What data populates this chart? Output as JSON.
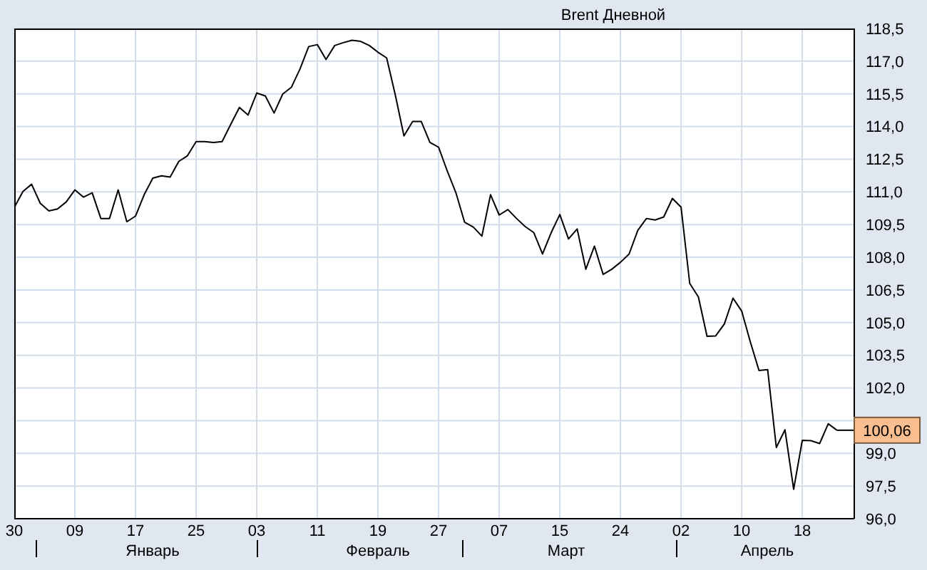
{
  "chart_data": {
    "type": "line",
    "title": "Brent Дневной",
    "annotations": [
      "Январь",
      "Февраль",
      "Март",
      "Апрель"
    ],
    "categories": [
      "30",
      null,
      null,
      null,
      null,
      null,
      null,
      "09",
      null,
      null,
      null,
      null,
      null,
      null,
      "17",
      null,
      null,
      null,
      null,
      null,
      null,
      "25",
      null,
      null,
      null,
      null,
      null,
      null,
      "03",
      null,
      null,
      null,
      null,
      null,
      null,
      "11",
      null,
      null,
      null,
      null,
      null,
      null,
      "19",
      null,
      null,
      null,
      null,
      null,
      null,
      "27",
      null,
      null,
      null,
      null,
      null,
      null,
      "07",
      null,
      null,
      null,
      null,
      null,
      null,
      "15",
      null,
      null,
      null,
      null,
      null,
      null,
      "24",
      null,
      null,
      null,
      null,
      null,
      null,
      "02",
      null,
      null,
      null,
      null,
      null,
      null,
      "10",
      null,
      null,
      null,
      null,
      null,
      null,
      "18",
      null,
      null,
      null,
      null,
      null,
      null
    ],
    "series": [
      {
        "color": "#000000",
        "values": [
          110.28,
          111.02,
          111.35,
          110.48,
          110.13,
          110.22,
          110.54,
          111.09,
          110.76,
          110.96,
          109.78,
          109.78,
          111.09,
          109.63,
          109.89,
          110.87,
          111.63,
          111.74,
          111.68,
          112.4,
          112.66,
          113.31,
          113.31,
          113.27,
          113.31,
          114.1,
          114.88,
          114.53,
          115.54,
          115.4,
          114.62,
          115.49,
          115.8,
          116.65,
          117.67,
          117.76,
          117.08,
          117.72,
          117.85,
          117.96,
          117.91,
          117.72,
          117.41,
          117.15,
          115.45,
          113.57,
          114.23,
          114.23,
          113.27,
          113.05,
          111.96,
          110.96,
          109.61,
          109.39,
          108.97,
          110.87,
          109.94,
          110.19,
          109.78,
          109.41,
          109.13,
          108.15,
          109.13,
          109.96,
          108.84,
          109.3,
          107.45,
          108.51,
          107.21,
          107.45,
          107.77,
          108.15,
          109.23,
          109.78,
          109.71,
          109.85,
          110.7,
          110.3,
          106.8,
          106.18,
          104.37,
          104.39,
          104.94,
          106.12,
          105.53,
          104.11,
          102.8,
          102.84,
          99.27,
          100.08,
          97.35,
          99.6,
          99.58,
          99.45,
          100.36,
          100.06,
          null,
          null
        ],
        "value_labels": [
          null,
          null,
          null,
          null,
          null,
          null,
          null,
          null,
          null,
          null,
          null,
          null,
          null,
          null,
          null,
          null,
          null,
          null,
          null,
          null,
          null,
          null,
          null,
          null,
          null,
          null,
          null,
          null,
          null,
          null,
          null,
          null,
          null,
          null,
          null,
          null,
          null,
          null,
          null,
          null,
          null,
          null,
          null,
          null,
          null,
          null,
          null,
          null,
          null,
          null,
          null,
          null,
          null,
          null,
          null,
          null,
          null,
          null,
          null,
          null,
          null,
          null,
          null,
          null,
          null,
          null,
          null,
          null,
          null,
          null,
          null,
          null,
          null,
          null,
          null,
          null,
          null,
          null,
          null,
          null,
          null,
          null,
          null,
          null,
          null,
          null,
          null,
          null,
          null,
          null,
          null,
          null,
          null,
          null,
          null,
          "100,06",
          null,
          null
        ]
      }
    ],
    "ylim": [
      96,
      118.5
    ],
    "yticks": [
      {
        "value": 96,
        "label": "96,0"
      },
      {
        "value": 97.5,
        "label": "97,5"
      },
      {
        "value": 99,
        "label": "99,0"
      },
      {
        "value": 100.5,
        "label": null
      },
      {
        "value": 102,
        "label": "102,0"
      },
      {
        "value": 103.5,
        "label": "103,5"
      },
      {
        "value": 105,
        "label": "105,0"
      },
      {
        "value": 106.5,
        "label": "106,5"
      },
      {
        "value": 108,
        "label": "108,0"
      },
      {
        "value": 109.5,
        "label": "109,5"
      },
      {
        "value": 111,
        "label": "111,0"
      },
      {
        "value": 112.5,
        "label": "112,5"
      },
      {
        "value": 114,
        "label": "114,0"
      },
      {
        "value": 115.5,
        "label": "115,5"
      },
      {
        "value": 117,
        "label": "117,0"
      },
      {
        "value": 118.5,
        "label": "118,5"
      }
    ],
    "grid": true,
    "marker": "none",
    "line_style": "solid"
  }
}
